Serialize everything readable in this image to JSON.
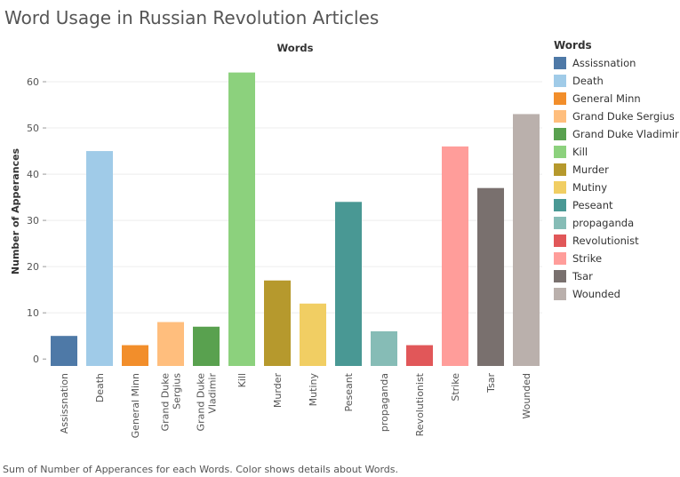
{
  "title": "Word Usage in Russian Revolution Articles",
  "caption": "Sum of Number of Apperances for each Words.  Color shows details about Words.",
  "legend": {
    "title": "Words",
    "items": [
      {
        "label": "Assissnation",
        "color": "#4e79a7"
      },
      {
        "label": "Death",
        "color": "#a0cbe8"
      },
      {
        "label": "General Minn",
        "color": "#f28e2b"
      },
      {
        "label": "Grand Duke Sergius",
        "color": "#ffbe7d"
      },
      {
        "label": "Grand Duke Vladimir",
        "color": "#59a14f"
      },
      {
        "label": "Kill",
        "color": "#8cd17d"
      },
      {
        "label": "Murder",
        "color": "#b6992d"
      },
      {
        "label": "Mutiny",
        "color": "#f1ce63"
      },
      {
        "label": "Peseant",
        "color": "#499894"
      },
      {
        "label": "propaganda",
        "color": "#86bcb6"
      },
      {
        "label": "Revolutionist",
        "color": "#e15759"
      },
      {
        "label": "Strike",
        "color": "#ff9d9a"
      },
      {
        "label": "Tsar",
        "color": "#79706e"
      },
      {
        "label": "Wounded",
        "color": "#bab0ac"
      }
    ]
  },
  "chart_data": {
    "type": "bar",
    "title": "Words",
    "xlabel": "",
    "ylabel": "Number of Apperances",
    "categories": [
      "Assissnation",
      "Death",
      "General Minn",
      "Grand Duke Sergius",
      "Grand Duke Vladimir",
      "Kill",
      "Murder",
      "Mutiny",
      "Peseant",
      "propaganda",
      "Revolutionist",
      "Strike",
      "Tsar",
      "Wounded"
    ],
    "tick_labels": [
      [
        "Assissnation"
      ],
      [
        "Death"
      ],
      [
        "General Minn"
      ],
      [
        "Grand Duke",
        "Sergius"
      ],
      [
        "Grand Duke",
        "Vladimir"
      ],
      [
        "Kill"
      ],
      [
        "Murder"
      ],
      [
        "Mutiny"
      ],
      [
        "Peseant"
      ],
      [
        "propaganda"
      ],
      [
        "Revolutionist"
      ],
      [
        "Strike"
      ],
      [
        "Tsar"
      ],
      [
        "Wounded"
      ]
    ],
    "values": [
      5,
      45,
      3,
      8,
      7,
      62,
      17,
      12,
      34,
      6,
      3,
      46,
      37,
      53
    ],
    "colors": [
      "#4e79a7",
      "#a0cbe8",
      "#f28e2b",
      "#ffbe7d",
      "#59a14f",
      "#8cd17d",
      "#b6992d",
      "#f1ce63",
      "#499894",
      "#86bcb6",
      "#e15759",
      "#ff9d9a",
      "#79706e",
      "#bab0ac"
    ],
    "ylim": [
      -1.5,
      65
    ],
    "yticks": [
      0,
      10,
      20,
      30,
      40,
      50,
      60
    ],
    "grid": true,
    "legend_position": "right"
  }
}
